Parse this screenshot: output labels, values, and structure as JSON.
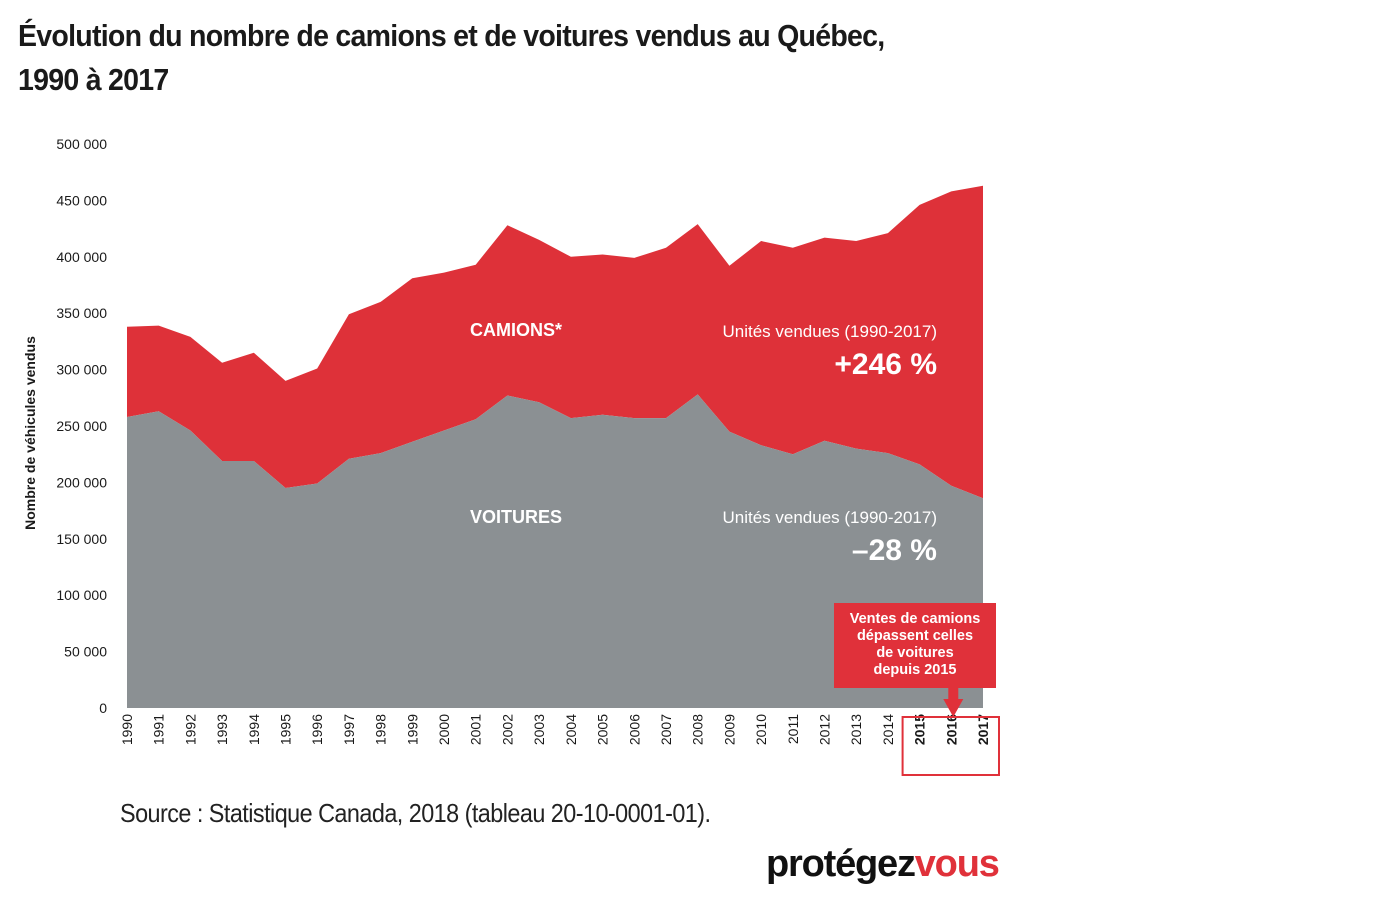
{
  "title_line1": "Évolution du nombre de camions et de voitures vendus au Québec,",
  "title_line2": "1990 à 2017",
  "source": "Source : Statistique Canada, 2018 (tableau 20-10-0001-01).",
  "logo": {
    "part1": "protégez",
    "part2": "vous"
  },
  "colors": {
    "trucks": "#de3139",
    "cars": "#8b9093",
    "highlight_box": "#e0313a"
  },
  "chart_data": {
    "type": "area",
    "stacked": true,
    "title": "Évolution du nombre de camions et de voitures vendus au Québec, 1990 à 2017",
    "ylabel": "Nombre de véhicules vendus",
    "xlabel": "",
    "ylim": [
      0,
      500000
    ],
    "yticks": [
      0,
      50000,
      100000,
      150000,
      200000,
      250000,
      300000,
      350000,
      400000,
      450000,
      500000
    ],
    "ytick_labels": [
      "0",
      "50 000",
      "100 000",
      "150 000",
      "200 000",
      "250 000",
      "300 000",
      "350 000",
      "400 000",
      "450 000",
      "500 000"
    ],
    "categories": [
      "1990",
      "1991",
      "1992",
      "1993",
      "1994",
      "1995",
      "1996",
      "1997",
      "1998",
      "1999",
      "2000",
      "2001",
      "2002",
      "2003",
      "2004",
      "2005",
      "2006",
      "2007",
      "2008",
      "2009",
      "2010",
      "2011",
      "2012",
      "2013",
      "2014",
      "2015",
      "2016",
      "2017"
    ],
    "highlighted_categories": [
      "2015",
      "2016",
      "2017"
    ],
    "series": [
      {
        "name": "VOITURES",
        "values": [
          258000,
          263000,
          246000,
          219000,
          219000,
          195000,
          199000,
          221000,
          226000,
          236000,
          246000,
          256000,
          277000,
          271000,
          257000,
          260000,
          257000,
          257000,
          278000,
          245000,
          233000,
          225000,
          237000,
          230000,
          226000,
          216000,
          197000,
          186000
        ]
      },
      {
        "name": "CAMIONS*",
        "values": [
          80000,
          76000,
          83000,
          87000,
          96000,
          95000,
          102000,
          128000,
          134000,
          145000,
          140000,
          137000,
          151000,
          144000,
          143000,
          142000,
          142000,
          151000,
          151000,
          147000,
          181000,
          183000,
          180000,
          184000,
          195000,
          230000,
          261000,
          277000
        ]
      }
    ],
    "annotations": {
      "trucks_label": "CAMIONS*",
      "cars_label": "VOITURES",
      "trucks_caption": "Unités vendues (1990-2017)",
      "trucks_change": "+246 %",
      "cars_caption": "Unités vendues (1990-2017)",
      "cars_change": "–28 %",
      "callout_lines": [
        "Ventes de camions",
        "dépassent celles",
        "de voitures",
        "depuis 2015"
      ]
    }
  }
}
